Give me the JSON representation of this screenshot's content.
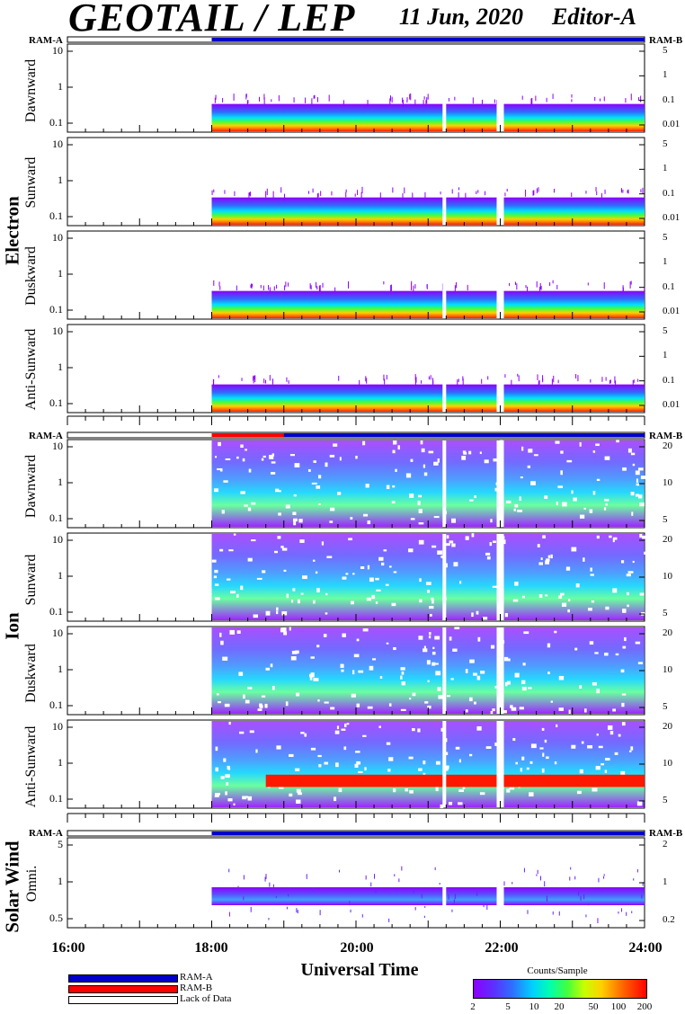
{
  "header": {
    "title": "GEOTAIL / LEP",
    "date": "11 Jun, 2020",
    "editor": "Editor-A"
  },
  "ram": {
    "a": "RAM-A",
    "b": "RAM-B"
  },
  "groups": {
    "electron": "Electron",
    "ion": "Ion",
    "solar_wind": "Solar Wind"
  },
  "panels": {
    "e1": "Dawnward",
    "e2": "Sunward",
    "e3": "Duskward",
    "e4": "Anti-Sunward",
    "i1": "Dawnward",
    "i2": "Sunward",
    "i3": "Duskward",
    "i4": "Anti-Sunward",
    "sw": "Omni."
  },
  "xaxis": {
    "label": "Universal Time",
    "ticks": [
      "16:00",
      "18:00",
      "20:00",
      "22:00",
      "24:00"
    ]
  },
  "legend": {
    "ram_a": "RAM-A",
    "ram_b": "RAM-B",
    "lack": "Lack of Data"
  },
  "colorbar": {
    "title": "Counts/Sample",
    "ticks": [
      "2",
      "5",
      "10",
      "20",
      "50",
      "100",
      "200"
    ]
  },
  "colors": {
    "ram_a": "#0000c8",
    "ram_b": "#ff0000"
  },
  "chart_data": {
    "type": "heatmap",
    "x_range_hours": [
      16,
      24
    ],
    "data_start_hour": 18.0,
    "gap_hours": [
      21.2,
      21.95,
      22.0
    ],
    "electron_y_left_ticks": [
      "10",
      "1",
      "0.1"
    ],
    "electron_y_right_ticks": [
      "5",
      "1",
      "0.1",
      "0.01"
    ],
    "ion_y_left_ticks": [
      "10",
      "1",
      "0.1"
    ],
    "ion_y_right_ticks": [
      "20",
      "10",
      "5"
    ],
    "sw_y_left_ticks": [
      "5",
      "1",
      "0.5"
    ],
    "sw_y_right_ticks": [
      "2",
      "1",
      "0.2"
    ],
    "colorbar_range": [
      2,
      200
    ]
  }
}
